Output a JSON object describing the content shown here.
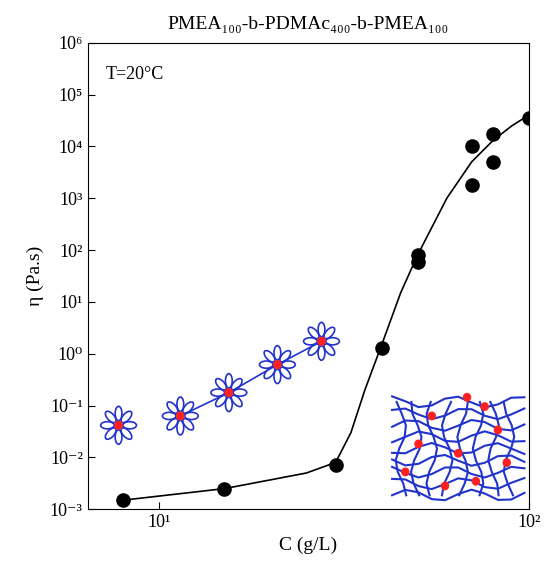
{
  "chart_data": {
    "type": "scatter",
    "title": "PMEA₁₀₀-b-PDMAc₄₀₀-b-PMEA₁₀₀",
    "x_label": "C (g/L)",
    "y_label": "η (Pa.s)",
    "annotations": [
      {
        "text": "T=20°C"
      }
    ],
    "log": true,
    "xlim": [
      6.4,
      100
    ],
    "ylim": [
      0.001,
      1000000
    ],
    "xticks": [
      {
        "value": 10,
        "label": "10¹"
      },
      {
        "value": 100,
        "label": "10²"
      }
    ],
    "yticks": [
      {
        "value": 0.001,
        "label": "10⁻³"
      },
      {
        "value": 0.01,
        "label": "10⁻²"
      },
      {
        "value": 0.1,
        "label": "10⁻¹"
      },
      {
        "value": 1,
        "label": "10⁰"
      },
      {
        "value": 10,
        "label": "10¹"
      },
      {
        "value": 100,
        "label": "10²"
      },
      {
        "value": 1000,
        "label": "10³"
      },
      {
        "value": 10000,
        "label": "10⁴"
      },
      {
        "value": 100000,
        "label": "10⁵"
      },
      {
        "value": 1000000,
        "label": "10⁶"
      }
    ],
    "series": [
      {
        "type": "scatter",
        "color": "#000000",
        "marker": "circle",
        "x": [
          8,
          15,
          30,
          40,
          50,
          50,
          70,
          70,
          80,
          80,
          100
        ],
        "values": [
          0.0015,
          0.0025,
          0.007,
          1.3,
          60,
          80,
          10000,
          1800,
          17000,
          5000,
          35000
        ]
      },
      {
        "type": "line",
        "color": "#000000",
        "line_style": "solid",
        "x": [
          8,
          15,
          25,
          30,
          33,
          36,
          40,
          45,
          50,
          60,
          70,
          80,
          90,
          100
        ],
        "values": [
          0.0015,
          0.0025,
          0.005,
          0.008,
          0.03,
          0.2,
          1.5,
          15,
          80,
          1000,
          5000,
          13000,
          25000,
          40000
        ]
      }
    ]
  }
}
